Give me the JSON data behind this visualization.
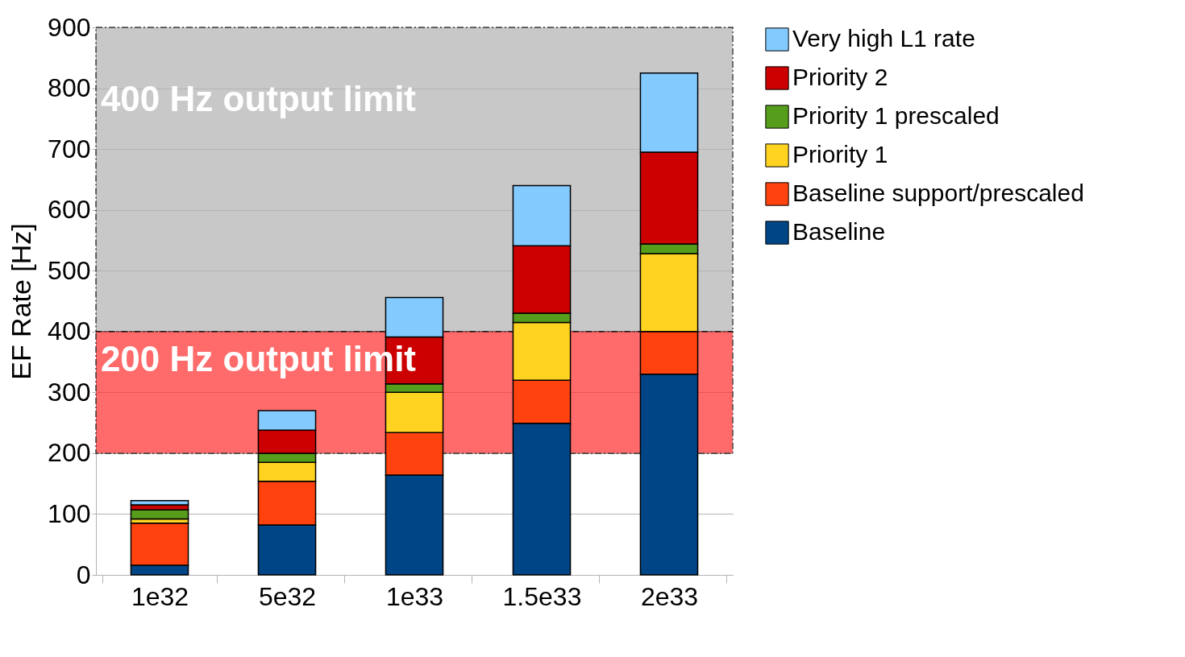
{
  "chart_data": {
    "type": "bar",
    "stacked": true,
    "ylabel": "EF Rate [Hz]",
    "categories": [
      "1e32",
      "5e32",
      "1e33",
      "1.5e33",
      "2e33"
    ],
    "series": [
      {
        "name": "Baseline",
        "color": "#004586",
        "values": [
          16,
          82,
          164,
          249,
          330
        ]
      },
      {
        "name": "Baseline support/prescaled",
        "color": "#ff420e",
        "values": [
          69,
          72,
          70,
          71,
          70
        ]
      },
      {
        "name": "Priority 1",
        "color": "#ffd320",
        "values": [
          7,
          31,
          66,
          95,
          128
        ]
      },
      {
        "name": "Priority 1 prescaled",
        "color": "#579d1c",
        "values": [
          15,
          15,
          14,
          15,
          16
        ]
      },
      {
        "name": "Priority 2",
        "color": "#cc0000",
        "values": [
          8,
          38,
          77,
          111,
          151
        ]
      },
      {
        "name": "Very high L1 rate",
        "color": "#83caff",
        "values": [
          7,
          32,
          65,
          99,
          130
        ]
      }
    ],
    "ylim": [
      0,
      900
    ],
    "yticks": [
      0,
      100,
      200,
      300,
      400,
      500,
      600,
      700,
      800,
      900
    ],
    "grid": "y",
    "legend": "right",
    "bands": [
      {
        "axis": "y",
        "from": 400,
        "to": 900,
        "label": "400 Hz output limit",
        "color": "#b3b3b3"
      },
      {
        "axis": "y",
        "from": 200,
        "to": 400,
        "label": "200 Hz output limit",
        "color": "#ff3333"
      }
    ]
  }
}
